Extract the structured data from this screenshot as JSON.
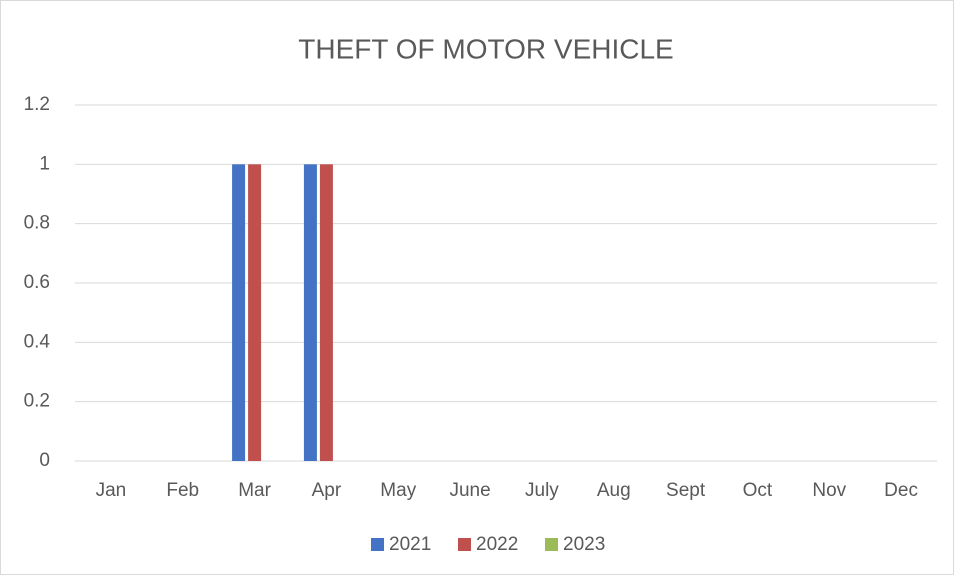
{
  "chart_data": {
    "type": "bar",
    "title": "THEFT OF MOTOR VEHICLE",
    "categories": [
      "Jan",
      "Feb",
      "Mar",
      "Apr",
      "May",
      "June",
      "July",
      "Aug",
      "Sept",
      "Oct",
      "Nov",
      "Dec"
    ],
    "series": [
      {
        "name": "2021",
        "color": "#4472c4",
        "values": [
          0,
          0,
          1,
          1,
          0,
          0,
          0,
          0,
          0,
          0,
          0,
          0
        ]
      },
      {
        "name": "2022",
        "color": "#c0504d",
        "values": [
          0,
          0,
          1,
          1,
          0,
          0,
          0,
          0,
          0,
          0,
          0,
          0
        ]
      },
      {
        "name": "2023",
        "color": "#9bbb59",
        "values": [
          0,
          0,
          0,
          0,
          0,
          0,
          0,
          0,
          0,
          0,
          0,
          0
        ]
      }
    ],
    "ylim": [
      0,
      1.2
    ],
    "yticks": [
      0,
      0.2,
      0.4,
      0.6,
      0.8,
      1,
      1.2
    ],
    "grid": true,
    "legend": "bottom"
  }
}
